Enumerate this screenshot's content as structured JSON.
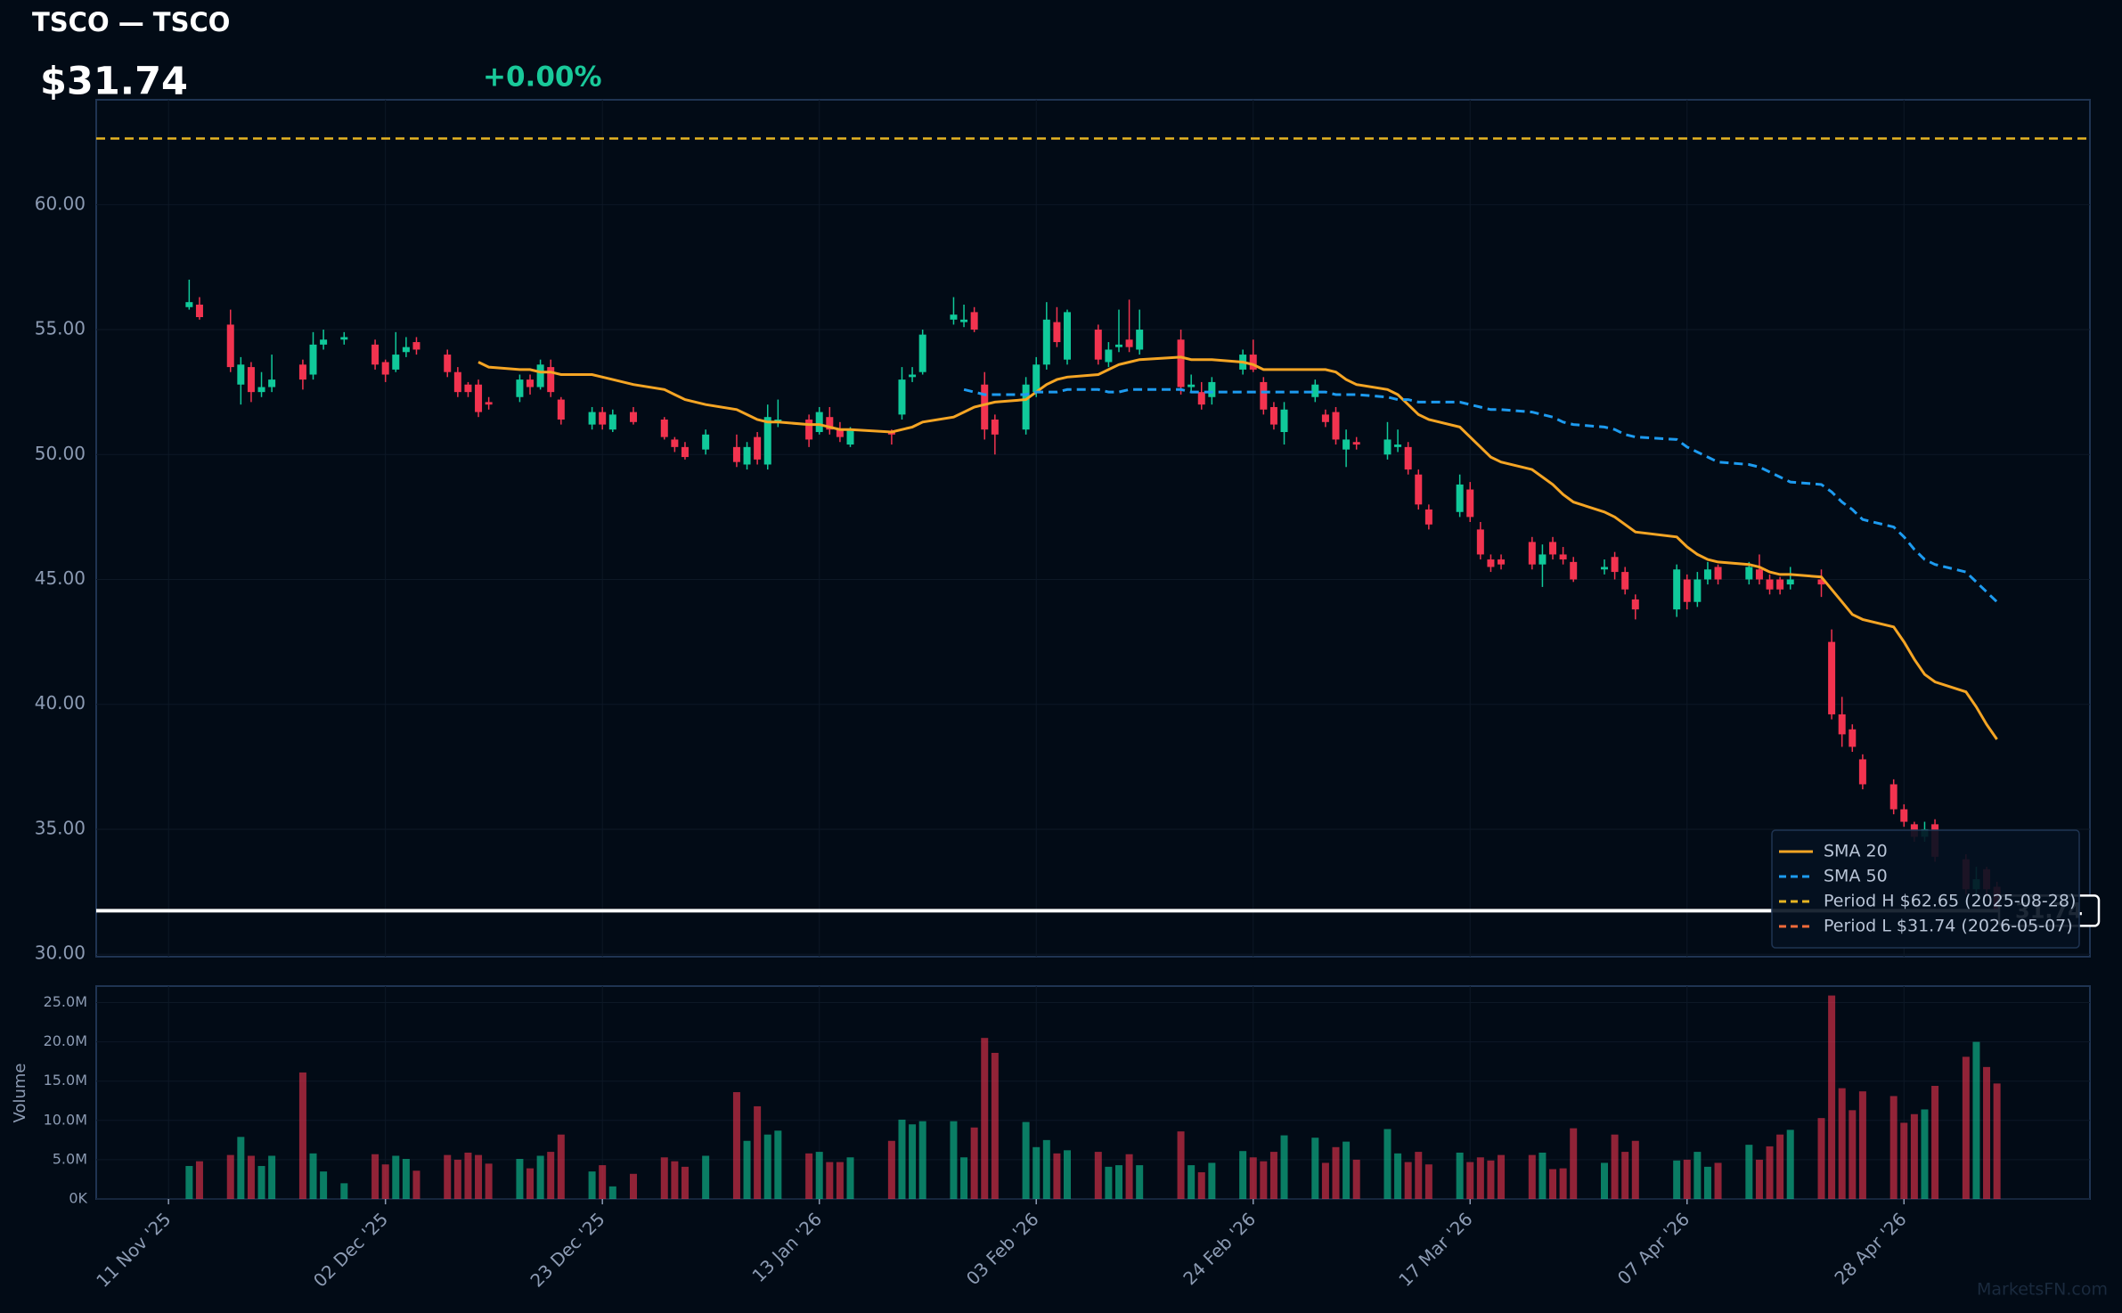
{
  "chart_data": {
    "type": "candlestick",
    "title": "TSCO — TSCO",
    "price_text": "$31.74",
    "change_text": "+0.00%",
    "watermark": "MarketsFN.com",
    "x": [
      "2025-11-13",
      "2025-11-14",
      "2025-11-17",
      "2025-11-18",
      "2025-11-19",
      "2025-11-20",
      "2025-11-21",
      "2025-11-24",
      "2025-11-25",
      "2025-11-26",
      "2025-11-28",
      "2025-12-01",
      "2025-12-02",
      "2025-12-03",
      "2025-12-04",
      "2025-12-05",
      "2025-12-08",
      "2025-12-09",
      "2025-12-10",
      "2025-12-11",
      "2025-12-12",
      "2025-12-15",
      "2025-12-16",
      "2025-12-17",
      "2025-12-18",
      "2025-12-19",
      "2025-12-22",
      "2025-12-23",
      "2025-12-24",
      "2025-12-26",
      "2025-12-29",
      "2025-12-30",
      "2025-12-31",
      "2026-01-02",
      "2026-01-05",
      "2026-01-06",
      "2026-01-07",
      "2026-01-08",
      "2026-01-09",
      "2026-01-12",
      "2026-01-13",
      "2026-01-14",
      "2026-01-15",
      "2026-01-16",
      "2026-01-20",
      "2026-01-21",
      "2026-01-22",
      "2026-01-23",
      "2026-01-26",
      "2026-01-27",
      "2026-01-28",
      "2026-01-29",
      "2026-01-30",
      "2026-02-02",
      "2026-02-03",
      "2026-02-04",
      "2026-02-05",
      "2026-02-06",
      "2026-02-09",
      "2026-02-10",
      "2026-02-11",
      "2026-02-12",
      "2026-02-13",
      "2026-02-17",
      "2026-02-18",
      "2026-02-19",
      "2026-02-20",
      "2026-02-23",
      "2026-02-24",
      "2026-02-25",
      "2026-02-26",
      "2026-02-27",
      "2026-03-02",
      "2026-03-03",
      "2026-03-04",
      "2026-03-05",
      "2026-03-06",
      "2026-03-09",
      "2026-03-10",
      "2026-03-11",
      "2026-03-12",
      "2026-03-13",
      "2026-03-16",
      "2026-03-17",
      "2026-03-18",
      "2026-03-19",
      "2026-03-20",
      "2026-03-23",
      "2026-03-24",
      "2026-03-25",
      "2026-03-26",
      "2026-03-27",
      "2026-03-30",
      "2026-03-31",
      "2026-04-01",
      "2026-04-02",
      "2026-04-06",
      "2026-04-07",
      "2026-04-08",
      "2026-04-09",
      "2026-04-10",
      "2026-04-13",
      "2026-04-14",
      "2026-04-15",
      "2026-04-16",
      "2026-04-17",
      "2026-04-20",
      "2026-04-21",
      "2026-04-22",
      "2026-04-23",
      "2026-04-24",
      "2026-04-27",
      "2026-04-28",
      "2026-04-29",
      "2026-04-30",
      "2026-05-01",
      "2026-05-04",
      "2026-05-05",
      "2026-05-06",
      "2026-05-07"
    ],
    "open": [
      55.9,
      56.0,
      55.2,
      52.8,
      53.5,
      52.5,
      52.7,
      53.6,
      53.2,
      54.4,
      54.6,
      54.4,
      53.7,
      53.4,
      54.1,
      54.5,
      54.0,
      53.3,
      52.8,
      52.8,
      52.1,
      52.3,
      53.0,
      52.7,
      53.5,
      52.2,
      51.2,
      51.7,
      51.0,
      51.7,
      51.4,
      50.6,
      50.3,
      50.2,
      50.3,
      49.6,
      50.7,
      49.6,
      51.3,
      51.4,
      50.9,
      51.5,
      51.0,
      50.4,
      50.9,
      51.6,
      53.1,
      53.3,
      55.4,
      55.3,
      55.7,
      52.8,
      51.4,
      51.0,
      52.5,
      53.6,
      55.3,
      53.8,
      55.0,
      53.7,
      54.3,
      54.6,
      54.2,
      54.6,
      52.7,
      52.5,
      52.3,
      53.4,
      54.0,
      52.9,
      51.9,
      50.9,
      52.3,
      51.6,
      51.7,
      50.2,
      50.5,
      50.0,
      50.3,
      50.3,
      49.2,
      47.8,
      47.7,
      48.6,
      47.0,
      45.8,
      45.8,
      46.5,
      45.6,
      46.5,
      46.0,
      45.7,
      45.4,
      45.9,
      45.3,
      44.2,
      43.8,
      45.0,
      44.1,
      45.0,
      45.5,
      45.0,
      45.4,
      45.0,
      45.0,
      44.8,
      45.0,
      42.5,
      39.6,
      39.0,
      37.8,
      36.8,
      35.8,
      35.2,
      34.7,
      35.2,
      33.8,
      32.6,
      33.4,
      32.7
    ],
    "high": [
      57.0,
      56.3,
      55.8,
      53.9,
      53.7,
      53.3,
      54.0,
      53.8,
      54.9,
      55.0,
      54.9,
      54.6,
      53.8,
      54.9,
      54.7,
      54.7,
      54.2,
      53.5,
      52.9,
      53.0,
      52.3,
      53.2,
      53.2,
      53.8,
      53.8,
      52.3,
      51.9,
      51.9,
      51.8,
      51.9,
      51.5,
      50.7,
      50.5,
      51.0,
      50.8,
      50.5,
      50.9,
      52.0,
      52.2,
      51.6,
      51.9,
      51.9,
      51.3,
      51.1,
      51.0,
      53.5,
      53.5,
      55.0,
      56.3,
      56.0,
      55.9,
      53.3,
      51.6,
      53.1,
      53.9,
      56.1,
      55.9,
      55.8,
      55.2,
      54.5,
      55.8,
      56.2,
      55.8,
      55.0,
      53.2,
      52.9,
      53.1,
      54.2,
      54.6,
      53.1,
      52.1,
      52.1,
      53.0,
      51.8,
      51.9,
      51.0,
      50.7,
      51.3,
      51.0,
      50.5,
      49.4,
      48.0,
      49.2,
      48.9,
      47.3,
      46.0,
      46.0,
      46.7,
      46.4,
      46.7,
      46.3,
      45.9,
      45.8,
      46.1,
      45.5,
      44.4,
      45.6,
      45.2,
      45.3,
      45.7,
      45.6,
      45.7,
      46.0,
      45.2,
      45.1,
      45.5,
      45.4,
      43.0,
      40.3,
      39.2,
      38.0,
      37.0,
      36.0,
      35.3,
      35.3,
      35.4,
      34.0,
      33.5,
      33.5,
      32.9
    ],
    "low": [
      55.8,
      55.4,
      53.3,
      52.0,
      52.1,
      52.3,
      52.5,
      52.6,
      53.0,
      54.2,
      54.4,
      53.4,
      52.9,
      53.3,
      53.9,
      54.0,
      53.1,
      52.3,
      52.3,
      51.5,
      51.8,
      52.1,
      52.4,
      52.6,
      52.3,
      51.2,
      51.0,
      51.0,
      50.9,
      51.2,
      50.6,
      50.1,
      49.8,
      50.0,
      49.5,
      49.4,
      49.6,
      49.4,
      51.1,
      50.3,
      50.8,
      50.8,
      50.5,
      50.3,
      50.4,
      51.4,
      52.9,
      53.2,
      55.2,
      55.1,
      54.9,
      50.6,
      50.0,
      50.8,
      52.3,
      53.4,
      54.3,
      53.6,
      53.6,
      53.5,
      54.1,
      54.1,
      54.0,
      52.4,
      52.5,
      51.8,
      52.0,
      53.2,
      53.3,
      51.6,
      51.0,
      50.4,
      52.1,
      51.1,
      50.4,
      49.5,
      50.2,
      49.8,
      50.1,
      49.2,
      47.8,
      47.0,
      47.5,
      47.3,
      45.8,
      45.3,
      45.4,
      45.4,
      44.7,
      45.8,
      45.6,
      44.9,
      45.2,
      45.0,
      44.4,
      43.4,
      43.5,
      43.8,
      43.9,
      44.8,
      44.8,
      44.8,
      44.8,
      44.4,
      44.4,
      44.6,
      44.3,
      39.4,
      38.3,
      38.1,
      36.6,
      35.6,
      35.1,
      34.5,
      34.5,
      33.7,
      32.4,
      32.3,
      32.3,
      31.74
    ],
    "close": [
      56.1,
      55.5,
      53.5,
      53.6,
      52.5,
      52.7,
      53.0,
      53.0,
      54.4,
      54.6,
      54.7,
      53.6,
      53.2,
      54.0,
      54.3,
      54.2,
      53.3,
      52.5,
      52.5,
      51.7,
      52.0,
      53.0,
      52.7,
      53.6,
      52.5,
      51.4,
      51.7,
      51.2,
      51.6,
      51.3,
      50.7,
      50.3,
      49.9,
      50.8,
      49.7,
      50.3,
      49.8,
      51.5,
      51.4,
      50.6,
      51.7,
      51.0,
      50.7,
      51.0,
      50.8,
      53.0,
      53.2,
      54.8,
      55.6,
      55.4,
      55.0,
      51.0,
      50.8,
      52.8,
      53.6,
      55.4,
      54.5,
      55.7,
      53.8,
      54.2,
      54.4,
      54.3,
      55.0,
      52.7,
      52.8,
      52.0,
      52.9,
      54.0,
      53.4,
      51.8,
      51.2,
      51.8,
      52.8,
      51.3,
      50.6,
      50.6,
      50.4,
      50.6,
      50.4,
      49.4,
      48.0,
      47.2,
      48.8,
      47.5,
      46.0,
      45.5,
      45.6,
      45.6,
      46.0,
      46.0,
      45.8,
      45.0,
      45.5,
      45.3,
      44.6,
      43.8,
      45.4,
      44.1,
      45.0,
      45.4,
      45.0,
      45.5,
      45.0,
      44.6,
      44.6,
      45.0,
      44.8,
      39.6,
      38.8,
      38.3,
      36.8,
      35.8,
      35.3,
      34.7,
      35.0,
      33.9,
      32.6,
      33.0,
      32.6,
      31.74
    ],
    "up_color": "#10c99a",
    "down_color": "#f2334f",
    "series": [
      {
        "name": "SMA 20",
        "color": "#f5a524",
        "dash": false,
        "values": [
          null,
          null,
          null,
          null,
          null,
          null,
          null,
          null,
          null,
          null,
          null,
          null,
          null,
          null,
          null,
          null,
          null,
          null,
          null,
          53.7,
          53.5,
          53.4,
          53.4,
          53.3,
          53.3,
          53.2,
          53.2,
          53.1,
          53.0,
          52.8,
          52.6,
          52.4,
          52.2,
          52.0,
          51.8,
          51.6,
          51.4,
          51.3,
          51.3,
          51.2,
          51.2,
          51.1,
          51.0,
          51.0,
          50.9,
          51.0,
          51.1,
          51.3,
          51.5,
          51.7,
          51.9,
          52.0,
          52.1,
          52.2,
          52.5,
          52.8,
          53.0,
          53.1,
          53.2,
          53.4,
          53.6,
          53.7,
          53.8,
          53.9,
          53.8,
          53.8,
          53.8,
          53.7,
          53.6,
          53.4,
          53.4,
          53.4,
          53.4,
          53.4,
          53.3,
          53.0,
          52.8,
          52.6,
          52.4,
          52.0,
          51.6,
          51.4,
          51.1,
          50.7,
          50.3,
          49.9,
          49.7,
          49.4,
          49.1,
          48.8,
          48.4,
          48.1,
          47.7,
          47.5,
          47.2,
          46.9,
          46.7,
          46.3,
          46.0,
          45.8,
          45.7,
          45.6,
          45.5,
          45.3,
          45.2,
          45.2,
          45.1,
          44.6,
          44.1,
          43.6,
          43.4,
          43.1,
          42.5,
          41.8,
          41.2,
          40.9,
          40.5,
          39.9,
          39.2,
          38.6
        ]
      },
      {
        "name": "SMA 50",
        "color": "#1d9bf0",
        "dash": true,
        "values": [
          null,
          null,
          null,
          null,
          null,
          null,
          null,
          null,
          null,
          null,
          null,
          null,
          null,
          null,
          null,
          null,
          null,
          null,
          null,
          null,
          null,
          null,
          null,
          null,
          null,
          null,
          null,
          null,
          null,
          null,
          null,
          null,
          null,
          null,
          null,
          null,
          null,
          null,
          null,
          null,
          null,
          null,
          null,
          null,
          null,
          null,
          null,
          null,
          null,
          52.6,
          52.5,
          52.4,
          52.4,
          52.4,
          52.5,
          52.5,
          52.5,
          52.6,
          52.6,
          52.5,
          52.5,
          52.6,
          52.6,
          52.6,
          52.5,
          52.5,
          52.5,
          52.5,
          52.5,
          52.5,
          52.5,
          52.5,
          52.5,
          52.5,
          52.4,
          52.4,
          52.4,
          52.3,
          52.2,
          52.2,
          52.1,
          52.1,
          52.1,
          52.0,
          51.9,
          51.8,
          51.8,
          51.7,
          51.6,
          51.5,
          51.3,
          51.2,
          51.1,
          51.0,
          50.8,
          50.7,
          50.6,
          50.3,
          50.1,
          49.9,
          49.7,
          49.6,
          49.5,
          49.3,
          49.1,
          48.9,
          48.8,
          48.5,
          48.1,
          47.8,
          47.4,
          47.1,
          46.7,
          46.2,
          45.8,
          45.6,
          45.3,
          44.9,
          44.5,
          44.1
        ]
      }
    ],
    "period_high": {
      "name": "Period H $62.65 (2025-08-28)",
      "value": 62.65,
      "color": "#e6b422"
    },
    "period_low": {
      "name": "Period L $31.74 (2026-05-07)",
      "value": 31.74,
      "color": "#f06a3a"
    },
    "last_color": "#ffffff",
    "ylim": [
      29.9,
      64.2
    ],
    "yticks": [
      {
        "value": 30,
        "label": "30.00"
      },
      {
        "value": 35,
        "label": "35.00"
      },
      {
        "value": 40,
        "label": "40.00"
      },
      {
        "value": 45,
        "label": "45.00"
      },
      {
        "value": 50,
        "label": "50.00"
      },
      {
        "value": 55,
        "label": "55.00"
      },
      {
        "value": 60,
        "label": "60.00"
      }
    ],
    "xlim": [
      "2025-11-04",
      "2026-05-16"
    ],
    "xticks": [
      {
        "value": "2025-11-11",
        "label": "11 Nov '25"
      },
      {
        "value": "2025-12-02",
        "label": "02 Dec '25"
      },
      {
        "value": "2025-12-23",
        "label": "23 Dec '25"
      },
      {
        "value": "2026-01-13",
        "label": "13 Jan '26"
      },
      {
        "value": "2026-02-03",
        "label": "03 Feb '26"
      },
      {
        "value": "2026-02-24",
        "label": "24 Feb '26"
      },
      {
        "value": "2026-03-17",
        "label": "17 Mar '26"
      },
      {
        "value": "2026-04-07",
        "label": "07 Apr '26"
      },
      {
        "value": "2026-04-28",
        "label": "28 Apr '26"
      }
    ],
    "grid": true,
    "legend": "lower right",
    "volume": {
      "label": "Volume",
      "values": [
        4.2,
        4.8,
        5.6,
        7.9,
        5.5,
        4.2,
        5.5,
        16.1,
        5.8,
        3.5,
        2.0,
        5.7,
        4.4,
        5.5,
        5.1,
        3.6,
        5.6,
        5.0,
        5.9,
        5.6,
        4.5,
        5.1,
        3.9,
        5.5,
        6.0,
        8.2,
        3.5,
        4.3,
        1.6,
        3.2,
        5.3,
        4.8,
        4.1,
        5.5,
        13.6,
        7.4,
        11.8,
        8.2,
        8.7,
        5.8,
        6.0,
        4.7,
        4.7,
        5.3,
        7.4,
        10.1,
        9.5,
        9.9,
        9.9,
        5.3,
        9.1,
        20.5,
        18.6,
        9.8,
        6.6,
        7.5,
        5.8,
        6.2,
        6.0,
        4.1,
        4.3,
        5.7,
        4.3,
        8.6,
        4.3,
        3.4,
        4.6,
        6.1,
        5.3,
        4.8,
        6.0,
        8.1,
        7.8,
        4.6,
        6.6,
        7.3,
        5.0,
        8.9,
        5.8,
        4.7,
        6.0,
        4.4,
        5.9,
        4.7,
        5.3,
        4.9,
        5.6,
        5.6,
        5.9,
        3.8,
        3.9,
        9.0,
        4.6,
        8.2,
        6.0,
        7.4,
        4.9,
        5.0,
        6.0,
        4.1,
        4.6,
        6.9,
        5.0,
        6.7,
        8.2,
        8.8,
        10.3,
        25.9,
        14.1,
        11.3,
        13.7,
        13.1,
        9.7,
        10.8,
        11.4,
        14.4,
        18.1,
        20.0,
        16.8,
        14.7
      ],
      "ylim": [
        0,
        27.1
      ],
      "yticks": [
        {
          "value": 0,
          "label": "0K"
        },
        {
          "value": 5,
          "label": "5.0M"
        },
        {
          "value": 10,
          "label": "10.0M"
        },
        {
          "value": 15,
          "label": "15.0M"
        },
        {
          "value": 20,
          "label": "20.0M"
        },
        {
          "value": 25,
          "label": "25.0M"
        }
      ]
    }
  }
}
